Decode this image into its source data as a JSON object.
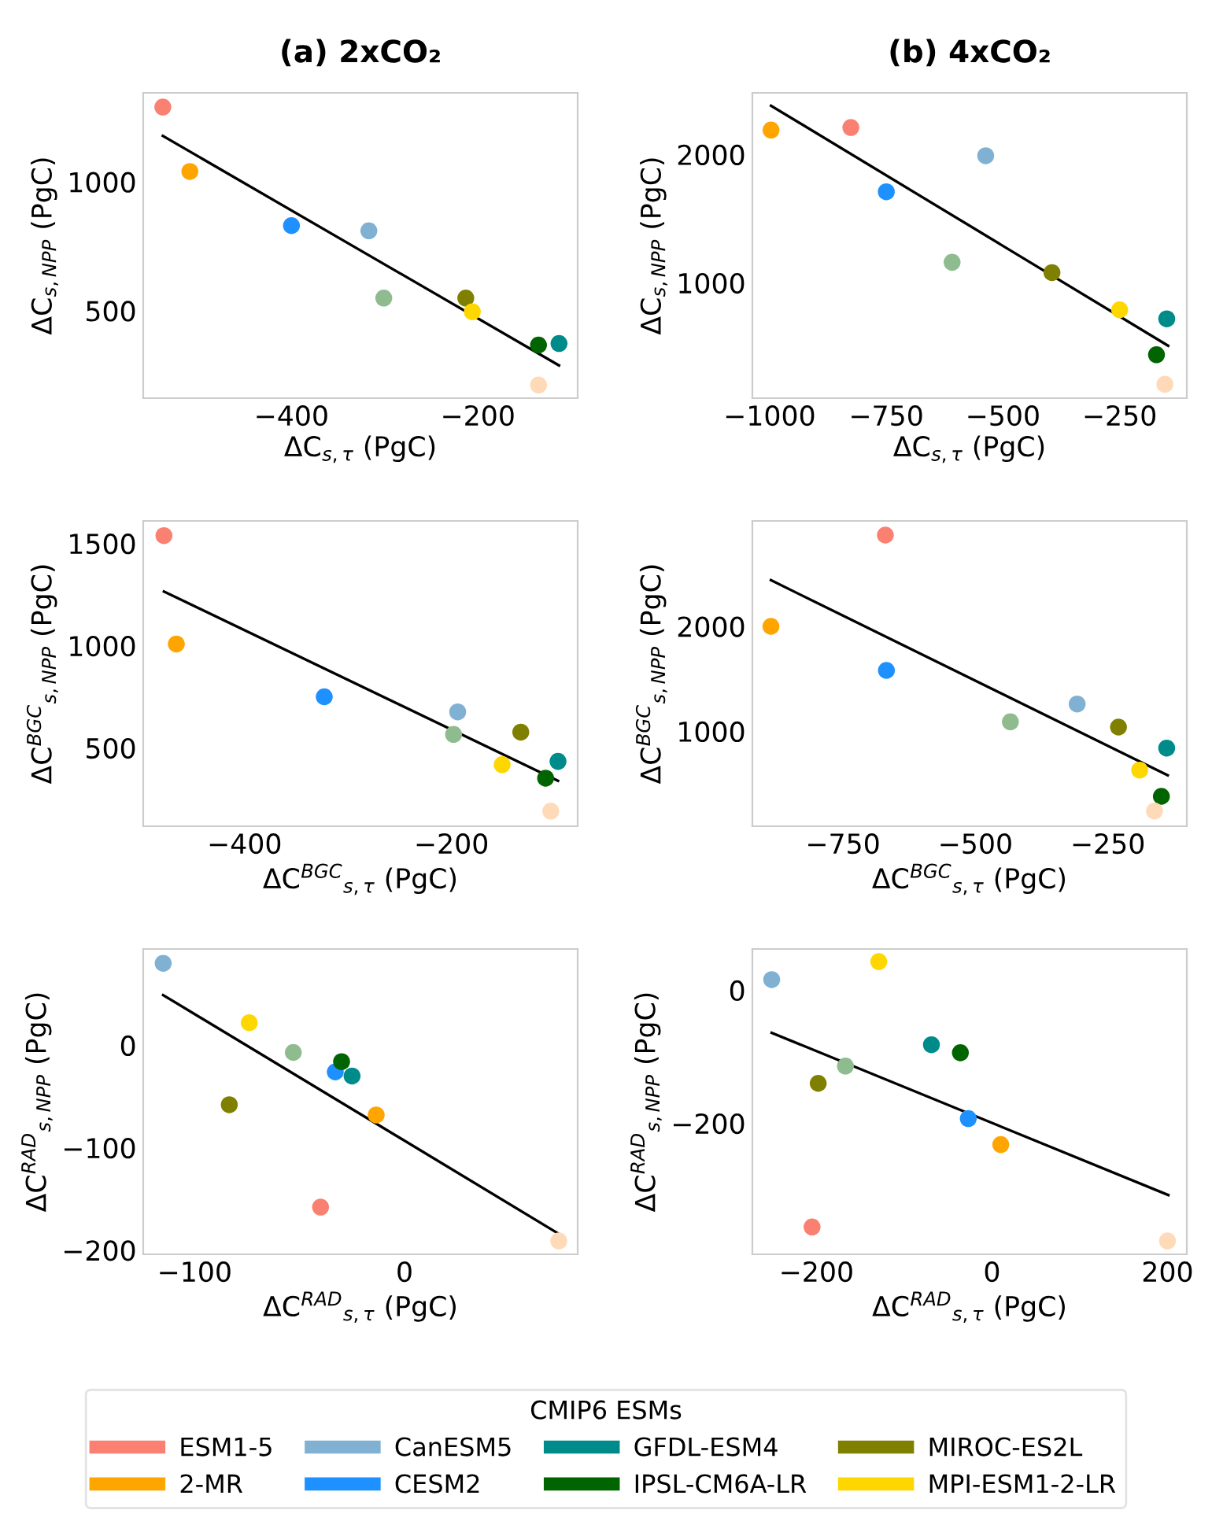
{
  "chart_data": [
    {
      "type": "scatter",
      "title": "(a) 2xCO₂",
      "xlabel": "ΔC$_{s,τ}$ (PgC)",
      "ylabel": "ΔC$_{s,NPP}$ (PgC)",
      "xlim": [
        -559,
        -93
      ],
      "ylim": [
        161,
        1345
      ],
      "xticks": [
        -400,
        -200
      ],
      "yticks": [
        500,
        1000
      ],
      "marker": "circle",
      "legend": "bottom",
      "legend_title": "CMIP6 ESMs",
      "series": [
        {
          "name": "ESM1-5",
          "color": "#fa8072",
          "x": [
            -538
          ],
          "values": [
            1290
          ]
        },
        {
          "name": "2-MR",
          "color": "#ffa500",
          "x": [
            -509
          ],
          "values": [
            1040
          ]
        },
        {
          "name": "CanESM5",
          "color": "#80b1d3",
          "x": [
            -317
          ],
          "values": [
            810
          ]
        },
        {
          "name": "CESM2",
          "color": "#1e90ff",
          "x": [
            -400
          ],
          "values": [
            830
          ]
        },
        {
          "name": "GFDL-ESM4",
          "color": "#008b8b",
          "x": [
            -113
          ],
          "values": [
            373
          ]
        },
        {
          "name": "IPSL-CM6A-LR",
          "color": "#006400",
          "x": [
            -135
          ],
          "values": [
            367
          ]
        },
        {
          "name": "MIROC-ES2L",
          "color": "#808000",
          "x": [
            -213
          ],
          "values": [
            549
          ]
        },
        {
          "name": "MPI-ESM1-2-LR",
          "color": "#ffd700",
          "x": [
            -206
          ],
          "values": [
            496
          ]
        },
        {
          "color": "#8fbc8f",
          "x": [
            -301
          ],
          "values": [
            549
          ]
        },
        {
          "color": "#ffdab9",
          "x": [
            -135
          ],
          "values": [
            212
          ]
        },
        {
          "type": "line",
          "marker": "none",
          "color": "#000000",
          "x": [
            -538,
            -113
          ],
          "values": [
            1178,
            288
          ]
        }
      ]
    },
    {
      "type": "scatter",
      "title": "(b) 4xCO₂",
      "xlabel": "ΔC$_{s,τ}$ (PgC)",
      "ylabel": "ΔC$_{s,NPP}$ (PgC)",
      "xlim": [
        -1037,
        -106
      ],
      "ylim": [
        102,
        2480
      ],
      "xticks": [
        -1000,
        -750,
        -500,
        -250
      ],
      "yticks": [
        1000,
        2000
      ],
      "marker": "circle",
      "series": [
        {
          "name": "ESM1-5",
          "color": "#fa8072",
          "x": [
            -826
          ],
          "values": [
            2210
          ]
        },
        {
          "name": "2-MR",
          "color": "#ffa500",
          "x": [
            -997
          ],
          "values": [
            2190
          ]
        },
        {
          "name": "CanESM5",
          "color": "#80b1d3",
          "x": [
            -537
          ],
          "values": [
            1990
          ]
        },
        {
          "name": "CESM2",
          "color": "#1e90ff",
          "x": [
            -750
          ],
          "values": [
            1710
          ]
        },
        {
          "name": "GFDL-ESM4",
          "color": "#008b8b",
          "x": [
            -149
          ],
          "values": [
            720
          ]
        },
        {
          "name": "IPSL-CM6A-LR",
          "color": "#006400",
          "x": [
            -171
          ],
          "values": [
            440
          ]
        },
        {
          "name": "MIROC-ES2L",
          "color": "#808000",
          "x": [
            -395
          ],
          "values": [
            1080
          ]
        },
        {
          "name": "MPI-ESM1-2-LR",
          "color": "#ffd700",
          "x": [
            -250
          ],
          "values": [
            790
          ]
        },
        {
          "color": "#8fbc8f",
          "x": [
            -609
          ],
          "values": [
            1160
          ]
        },
        {
          "color": "#ffdab9",
          "x": [
            -153
          ],
          "values": [
            210
          ]
        },
        {
          "type": "line",
          "marker": "none",
          "color": "#000000",
          "x": [
            -997,
            -146
          ],
          "values": [
            2380,
            510
          ]
        }
      ]
    },
    {
      "type": "scatter",
      "xlabel": "ΔC$^{BGC}$$_{s,τ}$ (PgC)",
      "ylabel": "ΔC$^{BGC}$$_{s,NPP}$ (PgC)",
      "xlim": [
        -498,
        -78
      ],
      "ylim": [
        117,
        1610
      ],
      "xticks": [
        -400,
        -200
      ],
      "yticks": [
        500,
        1000,
        1500
      ],
      "marker": "circle",
      "series": [
        {
          "name": "ESM1-5",
          "color": "#fa8072",
          "x": [
            -478
          ],
          "values": [
            1538
          ]
        },
        {
          "name": "2-MR",
          "color": "#ffa500",
          "x": [
            -466
          ],
          "values": [
            1008
          ]
        },
        {
          "name": "CanESM5",
          "color": "#80b1d3",
          "x": [
            -194
          ],
          "values": [
            676
          ]
        },
        {
          "name": "CESM2",
          "color": "#1e90ff",
          "x": [
            -323
          ],
          "values": [
            750
          ]
        },
        {
          "name": "GFDL-ESM4",
          "color": "#008b8b",
          "x": [
            -97
          ],
          "values": [
            434
          ]
        },
        {
          "name": "IPSL-CM6A-LR",
          "color": "#006400",
          "x": [
            -109
          ],
          "values": [
            352
          ]
        },
        {
          "name": "MIROC-ES2L",
          "color": "#808000",
          "x": [
            -133
          ],
          "values": [
            577
          ]
        },
        {
          "name": "MPI-ESM1-2-LR",
          "color": "#ffd700",
          "x": [
            -151
          ],
          "values": [
            418
          ]
        },
        {
          "color": "#8fbc8f",
          "x": [
            -198
          ],
          "values": [
            566
          ]
        },
        {
          "color": "#ffdab9",
          "x": [
            -104
          ],
          "values": [
            191
          ]
        },
        {
          "type": "line",
          "marker": "none",
          "color": "#000000",
          "x": [
            -478,
            -97
          ],
          "values": [
            1265,
            339
          ]
        }
      ]
    },
    {
      "type": "scatter",
      "xlabel": "ΔC$^{BGC}$$_{s,τ}$ (PgC)",
      "ylabel": "ΔC$^{BGC}$$_{s,NPP}$ (PgC)",
      "xlim": [
        -921,
        -101
      ],
      "ylim": [
        95,
        3005
      ],
      "xticks": [
        -750,
        -500,
        -250
      ],
      "yticks": [
        1000,
        2000
      ],
      "marker": "circle",
      "series": [
        {
          "name": "ESM1-5",
          "color": "#fa8072",
          "x": [
            -670
          ],
          "values": [
            2870
          ]
        },
        {
          "name": "2-MR",
          "color": "#ffa500",
          "x": [
            -886
          ],
          "values": [
            2000
          ]
        },
        {
          "name": "CanESM5",
          "color": "#80b1d3",
          "x": [
            -308
          ],
          "values": [
            1260
          ]
        },
        {
          "name": "CESM2",
          "color": "#1e90ff",
          "x": [
            -668
          ],
          "values": [
            1580
          ]
        },
        {
          "name": "GFDL-ESM4",
          "color": "#008b8b",
          "x": [
            -139
          ],
          "values": [
            840
          ]
        },
        {
          "name": "IPSL-CM6A-LR",
          "color": "#006400",
          "x": [
            -149
          ],
          "values": [
            380
          ]
        },
        {
          "name": "MIROC-ES2L",
          "color": "#808000",
          "x": [
            -230
          ],
          "values": [
            1040
          ]
        },
        {
          "name": "MPI-ESM1-2-LR",
          "color": "#ffd700",
          "x": [
            -190
          ],
          "values": [
            630
          ]
        },
        {
          "color": "#8fbc8f",
          "x": [
            -434
          ],
          "values": [
            1090
          ]
        },
        {
          "color": "#ffdab9",
          "x": [
            -162
          ],
          "values": [
            240
          ]
        },
        {
          "type": "line",
          "marker": "none",
          "color": "#000000",
          "x": [
            -886,
            -137
          ],
          "values": [
            2440,
            580
          ]
        }
      ]
    },
    {
      "type": "scatter",
      "xlabel": "ΔC$^{RAD}$$_{s,τ}$ (PgC)",
      "ylabel": "ΔC$^{RAD}$$_{s,NPP}$ (PgC)",
      "xlim": [
        -124.5,
        82.5
      ],
      "ylim": [
        -204,
        94
      ],
      "xticks": [
        -100,
        0
      ],
      "yticks": [
        -200,
        -100,
        0
      ],
      "marker": "circle",
      "series": [
        {
          "name": "ESM1-5",
          "color": "#fa8072",
          "x": [
            -40
          ],
          "values": [
            -158
          ]
        },
        {
          "name": "2-MR",
          "color": "#ffa500",
          "x": [
            -13.5
          ],
          "values": [
            -68
          ]
        },
        {
          "name": "CanESM5",
          "color": "#80b1d3",
          "x": [
            -115
          ],
          "values": [
            80
          ]
        },
        {
          "name": "CESM2",
          "color": "#1e90ff",
          "x": [
            -33
          ],
          "values": [
            -26
          ]
        },
        {
          "name": "GFDL-ESM4",
          "color": "#008b8b",
          "x": [
            -25
          ],
          "values": [
            -30
          ]
        },
        {
          "name": "IPSL-CM6A-LR",
          "color": "#006400",
          "x": [
            -30
          ],
          "values": [
            -16
          ]
        },
        {
          "name": "MIROC-ES2L",
          "color": "#808000",
          "x": [
            -83.5
          ],
          "values": [
            -58
          ]
        },
        {
          "name": "MPI-ESM1-2-LR",
          "color": "#ffd700",
          "x": [
            -74
          ],
          "values": [
            22
          ]
        },
        {
          "color": "#8fbc8f",
          "x": [
            -53
          ],
          "values": [
            -7
          ]
        },
        {
          "color": "#ffdab9",
          "x": [
            73.5
          ],
          "values": [
            -191
          ]
        },
        {
          "type": "line",
          "marker": "none",
          "color": "#000000",
          "x": [
            -115,
            73.5
          ],
          "values": [
            49,
            -184
          ]
        }
      ]
    },
    {
      "type": "scatter",
      "xlabel": "ΔC$^{RAD}$$_{s,τ}$ (PgC)",
      "ylabel": "ΔC$^{RAD}$$_{s,NPP}$ (PgC)",
      "xlim": [
        -273,
        222
      ],
      "ylim": [
        -397,
        62
      ],
      "xticks": [
        -200,
        0,
        200
      ],
      "yticks": [
        -200,
        0
      ],
      "marker": "circle",
      "series": [
        {
          "name": "ESM1-5",
          "color": "#fa8072",
          "x": [
            -205
          ],
          "values": [
            -356
          ]
        },
        {
          "name": "2-MR",
          "color": "#ffa500",
          "x": [
            10
          ],
          "values": [
            -232
          ]
        },
        {
          "name": "CanESM5",
          "color": "#80b1d3",
          "x": [
            -251
          ],
          "values": [
            16
          ]
        },
        {
          "name": "CESM2",
          "color": "#1e90ff",
          "x": [
            -27
          ],
          "values": [
            -193
          ]
        },
        {
          "name": "GFDL-ESM4",
          "color": "#008b8b",
          "x": [
            -69
          ],
          "values": [
            -82
          ]
        },
        {
          "name": "IPSL-CM6A-LR",
          "color": "#006400",
          "x": [
            -36
          ],
          "values": [
            -94
          ]
        },
        {
          "name": "MIROC-ES2L",
          "color": "#808000",
          "x": [
            -198
          ],
          "values": [
            -140
          ]
        },
        {
          "name": "MPI-ESM1-2-LR",
          "color": "#ffd700",
          "x": [
            -129
          ],
          "values": [
            43
          ]
        },
        {
          "color": "#8fbc8f",
          "x": [
            -167
          ],
          "values": [
            -114
          ]
        },
        {
          "color": "#ffdab9",
          "x": [
            200
          ],
          "values": [
            -377
          ]
        },
        {
          "type": "line",
          "marker": "none",
          "color": "#000000",
          "x": [
            -251,
            201
          ],
          "values": [
            -64,
            -308
          ]
        }
      ]
    }
  ]
}
